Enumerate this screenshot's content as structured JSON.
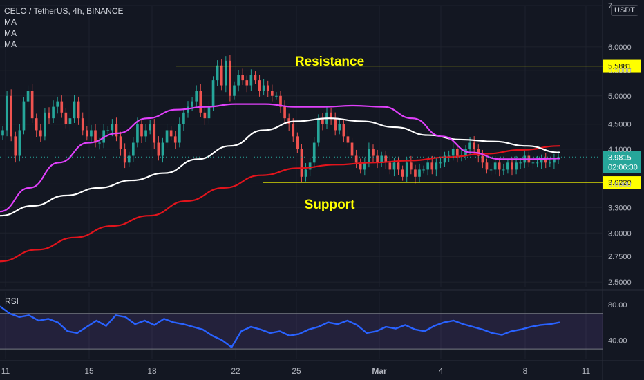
{
  "header": {
    "title": "CELO / TetherUS, 4h, BINANCE",
    "ma_labels": [
      "MA",
      "MA",
      "MA"
    ],
    "currency_button": "USDT"
  },
  "colors": {
    "background": "#131722",
    "grid": "#1e222d",
    "bull": "#26a69a",
    "bear": "#ef5350",
    "ma_fast": "#e040fb",
    "ma_mid": "#ffffff",
    "ma_slow": "#e2141c",
    "level": "#ffff00",
    "rsi_line": "#2962ff",
    "rsi_band": "#7e57c2"
  },
  "annotations": {
    "resistance": "Resistance",
    "support": "Support"
  },
  "price_axis": {
    "tick_labels": [
      "7.",
      "6.0000",
      "5.5000",
      "5.0000",
      "4.5000",
      "4.1000",
      "3.6000",
      "3.3000",
      "3.0000",
      "2.7500",
      "2.5000"
    ],
    "current_price": "3.9815",
    "countdown": "02:06:30",
    "resistance_value": "5.5881",
    "support_value": "3.6220"
  },
  "rsi": {
    "label": "RSI",
    "tick_labels": [
      "80.00",
      "40.00"
    ]
  },
  "time_axis": {
    "labels": [
      "11",
      "15",
      "18",
      "22",
      "25",
      "Mar",
      "4",
      "8",
      "11"
    ]
  },
  "chart_data": {
    "type": "candlestick",
    "symbol": "CELO / TetherUS",
    "interval": "4h",
    "exchange": "BINANCE",
    "y_scale": "log",
    "ylim": [
      2.45,
      7.0
    ],
    "levels": [
      {
        "name": "Resistance",
        "value": 5.5881
      },
      {
        "name": "Support",
        "value": 3.622
      }
    ],
    "last_price": 3.9815,
    "candles_close": [
      4.4,
      5.0,
      4.3,
      4.0,
      4.4,
      4.9,
      5.1,
      4.6,
      4.4,
      4.3,
      4.7,
      4.6,
      4.8,
      4.9,
      4.7,
      4.5,
      4.6,
      4.9,
      4.6,
      4.4,
      4.3,
      4.4,
      4.2,
      4.2,
      4.4,
      4.4,
      4.5,
      4.3,
      4.1,
      3.9,
      4.0,
      4.2,
      4.5,
      4.3,
      4.4,
      4.5,
      4.2,
      4.0,
      4.2,
      4.4,
      4.3,
      4.2,
      4.5,
      4.7,
      4.8,
      4.9,
      5.1,
      4.7,
      4.6,
      4.8,
      5.3,
      5.6,
      5.2,
      5.7,
      5.0,
      5.2,
      5.4,
      5.3,
      5.2,
      5.4,
      5.3,
      5.1,
      5.2,
      5.1,
      5.0,
      5.0,
      4.8,
      4.6,
      4.5,
      4.3,
      4.1,
      3.7,
      3.8,
      3.9,
      4.2,
      4.6,
      4.5,
      4.7,
      4.6,
      4.4,
      4.5,
      4.3,
      4.2,
      4.0,
      3.9,
      3.8,
      3.9,
      4.1,
      4.0,
      3.9,
      4.0,
      3.9,
      3.8,
      3.9,
      3.8,
      3.7,
      3.9,
      3.8,
      3.7,
      3.8,
      3.8,
      3.9,
      3.8,
      3.9,
      3.9,
      4.0,
      4.0,
      4.1,
      4.0,
      4.0,
      4.1,
      4.2,
      4.1,
      4.0,
      3.9,
      3.8,
      3.8,
      3.9,
      3.8,
      3.8,
      3.9,
      3.8,
      3.9,
      3.9,
      4.0,
      3.9,
      3.9,
      3.9,
      3.95,
      3.9,
      3.9,
      3.95,
      3.98
    ],
    "ma_fast": [
      3.25,
      3.55,
      3.9,
      4.2,
      4.35,
      4.6,
      4.75,
      4.8,
      4.85,
      4.85,
      4.8,
      4.8,
      4.82,
      4.8,
      4.6,
      4.3,
      4.05,
      3.95,
      3.95,
      3.96
    ],
    "ma_mid": [
      3.2,
      3.32,
      3.45,
      3.55,
      3.65,
      3.75,
      3.95,
      4.15,
      4.4,
      4.55,
      4.6,
      4.55,
      4.45,
      4.32,
      4.25,
      4.22,
      4.15,
      4.05
    ],
    "ma_slow": [
      2.7,
      2.82,
      2.95,
      3.08,
      3.2,
      3.38,
      3.55,
      3.72,
      3.82,
      3.87,
      3.9,
      3.93,
      3.98,
      4.03,
      4.09,
      4.15
    ],
    "rsi_values": [
      78,
      70,
      66,
      68,
      62,
      64,
      60,
      50,
      48,
      55,
      62,
      56,
      68,
      66,
      58,
      62,
      57,
      64,
      60,
      58,
      55,
      52,
      45,
      40,
      32,
      50,
      55,
      52,
      48,
      50,
      45,
      47,
      52,
      55,
      60,
      58,
      62,
      57,
      48,
      50,
      55,
      53,
      57,
      52,
      50,
      56,
      60,
      62,
      58,
      55,
      52,
      48,
      46,
      50,
      52,
      55,
      57,
      58,
      60
    ],
    "rsi_band": [
      30,
      70
    ],
    "rsi_ylim": [
      20,
      90
    ]
  }
}
